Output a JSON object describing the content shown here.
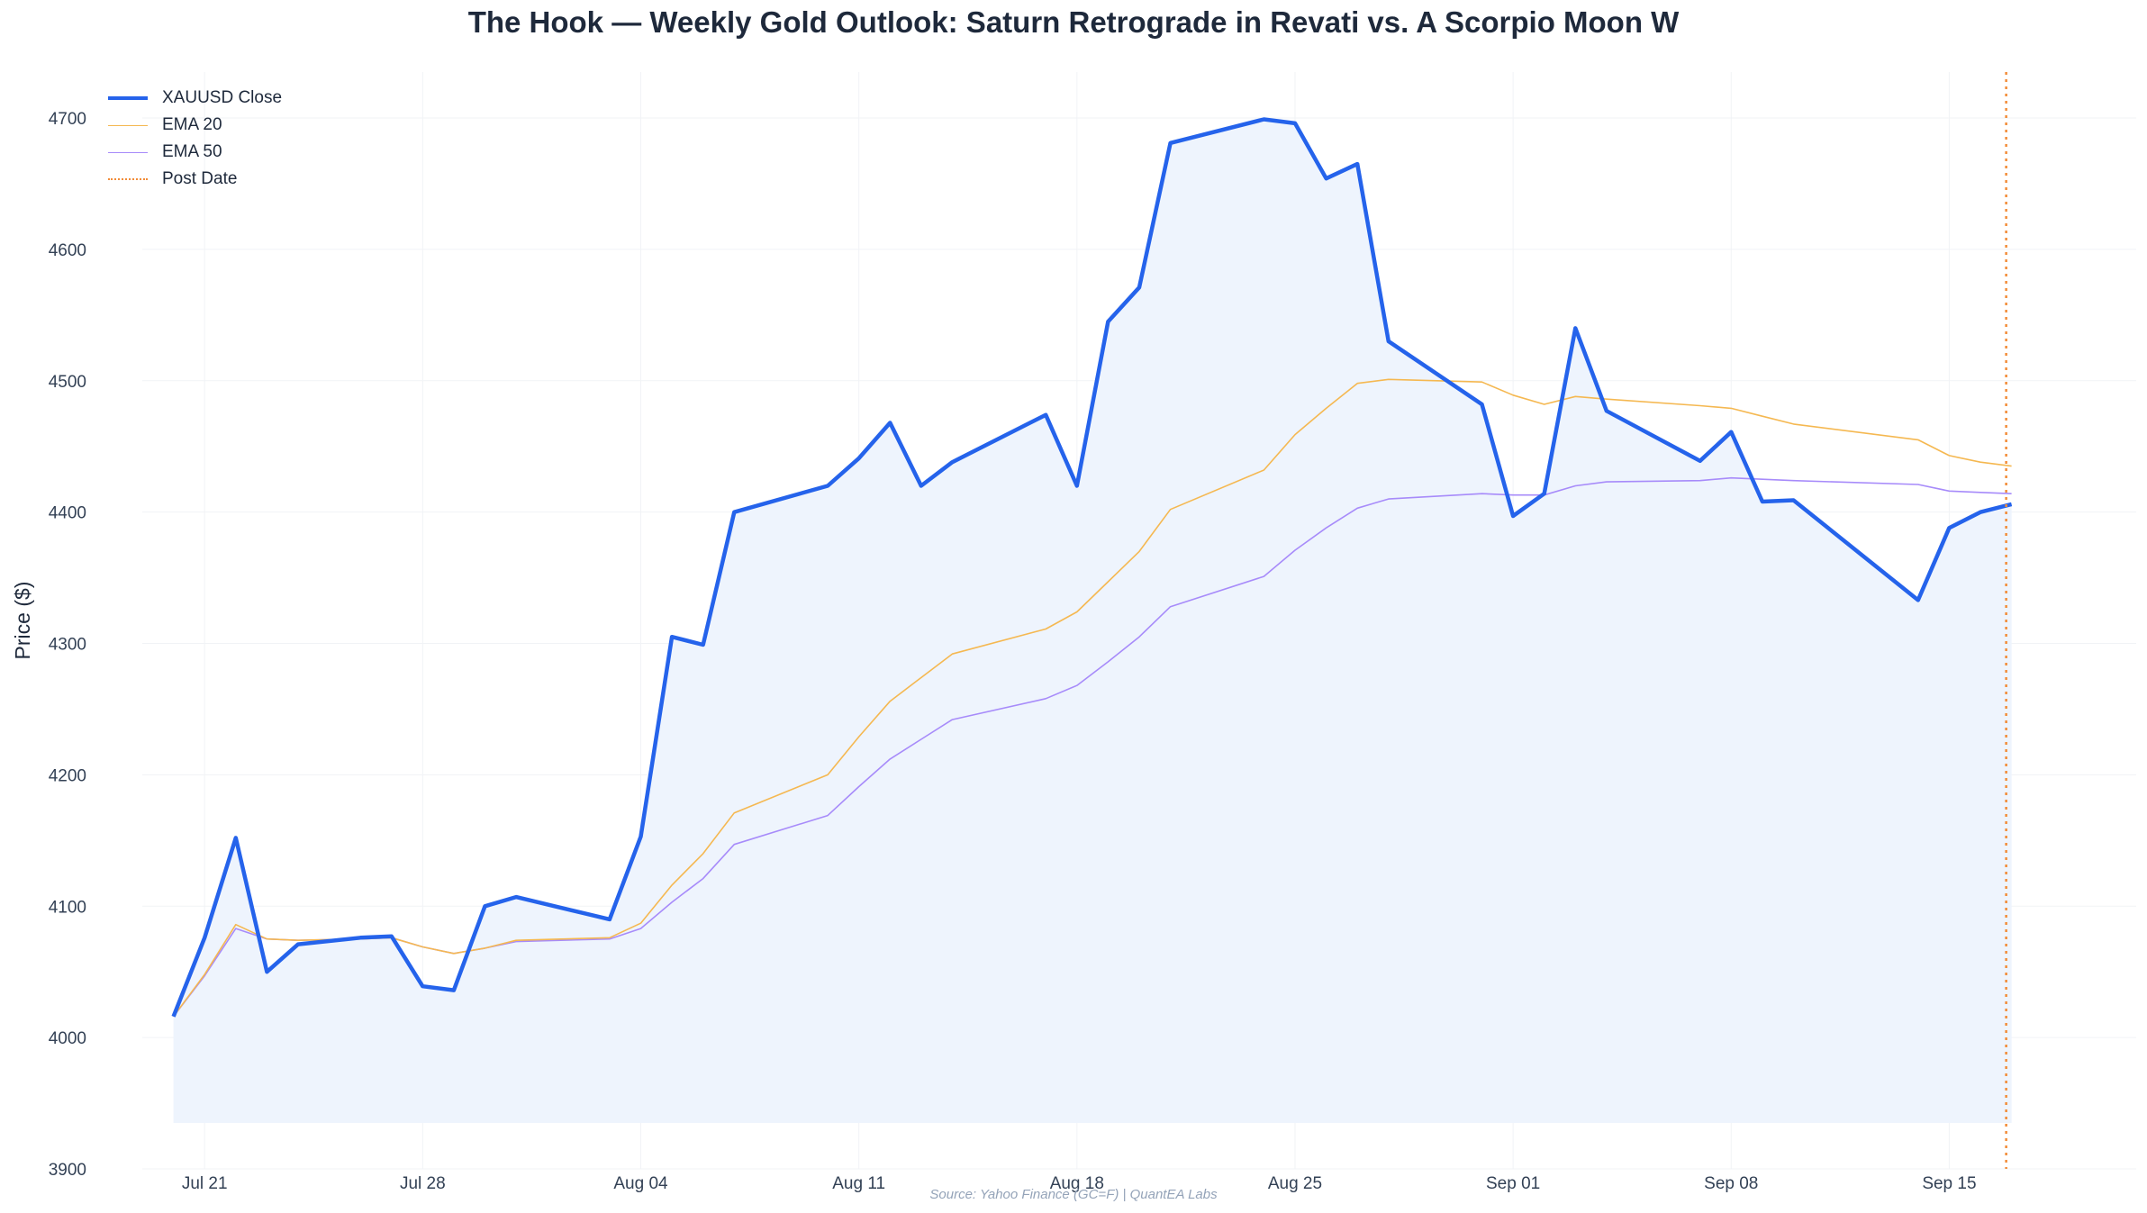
{
  "chart_data": {
    "type": "line",
    "title": "The Hook — Weekly Gold Outlook: Saturn Retrograde in Revati vs. A Scorpio Moon W",
    "xlabel": "",
    "ylabel": "Price ($)",
    "ylim": [
      3900,
      4735
    ],
    "yticks": [
      3900,
      4000,
      4100,
      4200,
      4300,
      4400,
      4500,
      4600,
      4700
    ],
    "xlim": [
      "2025-07-19",
      "2025-09-21"
    ],
    "xticks": [
      {
        "date": "2025-07-21",
        "label": "Jul 21"
      },
      {
        "date": "2025-07-28",
        "label": "Jul 28"
      },
      {
        "date": "2025-08-04",
        "label": "Aug 04"
      },
      {
        "date": "2025-08-11",
        "label": "Aug 11"
      },
      {
        "date": "2025-08-18",
        "label": "Aug 18"
      },
      {
        "date": "2025-08-25",
        "label": "Aug 25"
      },
      {
        "date": "2025-09-01",
        "label": "Sep 01"
      },
      {
        "date": "2025-09-08",
        "label": "Sep 08"
      },
      {
        "date": "2025-09-15",
        "label": "Sep 15"
      }
    ],
    "grid": true,
    "legend_position": "top-left",
    "fill_baseline": 3935,
    "colors": {
      "close": "#2563eb",
      "ema20": "#f5b851",
      "ema50": "#a78bfa",
      "post": "#f28c38",
      "fill": "#eef4fd"
    },
    "dates": [
      "2025-07-20",
      "2025-07-21",
      "2025-07-22",
      "2025-07-23",
      "2025-07-24",
      "2025-07-26",
      "2025-07-27",
      "2025-07-28",
      "2025-07-29",
      "2025-07-30",
      "2025-07-31",
      "2025-08-03",
      "2025-08-04",
      "2025-08-05",
      "2025-08-06",
      "2025-08-07",
      "2025-08-10",
      "2025-08-11",
      "2025-08-12",
      "2025-08-13",
      "2025-08-14",
      "2025-08-17",
      "2025-08-18",
      "2025-08-19",
      "2025-08-20",
      "2025-08-21",
      "2025-08-24",
      "2025-08-25",
      "2025-08-26",
      "2025-08-27",
      "2025-08-28",
      "2025-08-31",
      "2025-09-01",
      "2025-09-02",
      "2025-09-03",
      "2025-09-04",
      "2025-09-07",
      "2025-09-08",
      "2025-09-09",
      "2025-09-10",
      "2025-09-14",
      "2025-09-15",
      "2025-09-16",
      "2025-09-17"
    ],
    "series": [
      {
        "name": "XAUUSD Close",
        "key": "close",
        "values": [
          4016,
          4076,
          4152,
          4050,
          4071,
          4076,
          4077,
          4039,
          4036,
          4100,
          4107,
          4090,
          4153,
          4305,
          4299,
          4400,
          4420,
          4441,
          4468,
          4420,
          4438,
          4474,
          4420,
          4545,
          4571,
          4681,
          4699,
          4696,
          4654,
          4665,
          4530,
          4482,
          4397,
          4414,
          4540,
          4477,
          4439,
          4461,
          4408,
          4409,
          4333,
          4388,
          4400,
          4406
        ]
      },
      {
        "name": "EMA 20",
        "key": "ema20",
        "values": [
          4016,
          4048,
          4086,
          4075,
          4074,
          4075,
          4076,
          4069,
          4064,
          4068,
          4074,
          4076,
          4087,
          4116,
          4140,
          4171,
          4200,
          4229,
          4256,
          4274,
          4292,
          4311,
          4324,
          4347,
          4370,
          4402,
          4432,
          4459,
          4479,
          4498,
          4501,
          4499,
          4489,
          4482,
          4488,
          4486,
          4481,
          4479,
          4473,
          4467,
          4455,
          4443,
          4438,
          4435
        ]
      },
      {
        "name": "EMA 50",
        "key": "ema50",
        "values": [
          4016,
          4047,
          4083,
          4075,
          4074,
          4075,
          4076,
          4069,
          4064,
          4068,
          4073,
          4075,
          4083,
          4103,
          4121,
          4147,
          4169,
          4191,
          4212,
          4227,
          4242,
          4258,
          4268,
          4286,
          4305,
          4328,
          4351,
          4371,
          4388,
          4403,
          4410,
          4414,
          4413,
          4413,
          4420,
          4423,
          4424,
          4426,
          4425,
          4424,
          4421,
          4416,
          4415,
          4414
        ]
      }
    ],
    "post_date": {
      "name": "Post Date",
      "date": "2025-09-17"
    },
    "source": "Source: Yahoo Finance (GC=F) | QuantEA Labs"
  }
}
